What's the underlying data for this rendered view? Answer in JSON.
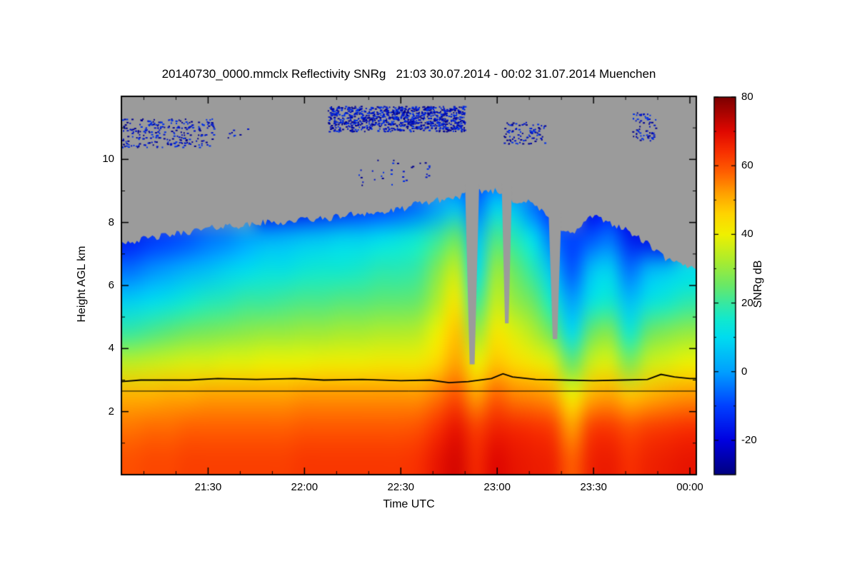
{
  "chart_data": {
    "type": "heatmap",
    "title": "20140730_0000.mmclx Reflectivity SNRg   21:03 30.07.2014 - 00:02 31.07.2014 Muenchen",
    "xlabel": "Time UTC",
    "ylabel": "Height AGL km",
    "station": "Muenchen",
    "x_range_hours": [
      21.05,
      24.0333
    ],
    "x_ticks": [
      {
        "t": 21.5,
        "label": "21:30"
      },
      {
        "t": 22.0,
        "label": "22:00"
      },
      {
        "t": 22.5,
        "label": "22:30"
      },
      {
        "t": 23.0,
        "label": "23:00"
      },
      {
        "t": 23.5,
        "label": "23:30"
      },
      {
        "t": 24.0,
        "label": "00:00"
      }
    ],
    "x_minor_step_min": 10,
    "y_range_km": [
      0,
      12
    ],
    "y_ticks": [
      2,
      4,
      6,
      8,
      10
    ],
    "y_minor_step_km": 1,
    "nodata_color": "#9b9b9b",
    "colorbar": {
      "label": "SNRg dB",
      "range": [
        -30,
        80
      ],
      "ticks": [
        -20,
        0,
        20,
        40,
        60,
        80
      ],
      "minor_ticks": [
        -10,
        10,
        30,
        50,
        70
      ]
    },
    "colormap": [
      [
        -30,
        "#000080"
      ],
      [
        -20,
        "#0000e0"
      ],
      [
        -10,
        "#0040ff"
      ],
      [
        -5,
        "#0070ff"
      ],
      [
        0,
        "#00a0ff"
      ],
      [
        10,
        "#00dcf0"
      ],
      [
        15,
        "#10e8d0"
      ],
      [
        20,
        "#38e8a0"
      ],
      [
        25,
        "#68e868"
      ],
      [
        32,
        "#a8ec30"
      ],
      [
        40,
        "#f0f000"
      ],
      [
        46,
        "#ffd400"
      ],
      [
        52,
        "#ffa000"
      ],
      [
        58,
        "#ff6000"
      ],
      [
        64,
        "#f83000"
      ],
      [
        70,
        "#e00800"
      ],
      [
        80,
        "#7c0000"
      ]
    ],
    "grid": {
      "note": "SNRg dB; rows top to bottom, row centers in row_centers_km; 30 uniform time columns spanning x_range_hours; null = no echo (gray)",
      "row_centers_km": [
        11.5,
        10.5,
        9.5,
        8.5,
        7.5,
        6.5,
        5.5,
        4.5,
        3.5,
        2.5,
        1.5,
        0.5
      ],
      "values": [
        [
          null,
          null,
          null,
          null,
          null,
          null,
          null,
          null,
          null,
          null,
          null,
          null,
          null,
          null,
          null,
          null,
          null,
          null,
          null,
          null,
          null,
          null,
          null,
          null,
          null,
          null,
          null,
          null,
          null,
          null
        ],
        [
          null,
          null,
          null,
          null,
          null,
          null,
          null,
          null,
          null,
          null,
          null,
          null,
          null,
          null,
          null,
          null,
          null,
          null,
          null,
          null,
          null,
          null,
          null,
          null,
          null,
          null,
          null,
          null,
          null,
          null
        ],
        [
          null,
          null,
          null,
          null,
          null,
          null,
          null,
          null,
          null,
          null,
          null,
          null,
          null,
          null,
          null,
          null,
          null,
          -8,
          -10,
          -6,
          -10,
          null,
          null,
          null,
          null,
          null,
          null,
          null,
          null,
          null
        ],
        [
          null,
          null,
          null,
          null,
          null,
          null,
          null,
          -20,
          -19,
          -18,
          -16,
          -14,
          -12,
          -10,
          -8,
          -5,
          0,
          5,
          -5,
          8,
          5,
          -5,
          -12,
          null,
          -18,
          -15,
          -20,
          null,
          null,
          null
        ],
        [
          -15,
          -12,
          -10,
          -8,
          -5,
          -3,
          0,
          2,
          3,
          5,
          6,
          8,
          8,
          10,
          12,
          15,
          20,
          25,
          5,
          22,
          18,
          10,
          -5,
          -10,
          -8,
          -5,
          -15,
          -18,
          -20,
          null
        ],
        [
          -5,
          -2,
          0,
          3,
          5,
          8,
          10,
          12,
          12,
          14,
          15,
          15,
          16,
          18,
          18,
          20,
          28,
          35,
          10,
          30,
          25,
          18,
          5,
          -8,
          5,
          8,
          -5,
          3,
          6,
          10
        ],
        [
          8,
          10,
          12,
          15,
          17,
          18,
          20,
          20,
          21,
          22,
          22,
          23,
          23,
          24,
          24,
          25,
          33,
          42,
          20,
          35,
          30,
          25,
          15,
          0,
          12,
          15,
          5,
          12,
          15,
          18
        ],
        [
          20,
          22,
          24,
          26,
          27,
          28,
          29,
          30,
          30,
          31,
          31,
          32,
          32,
          33,
          33,
          34,
          40,
          48,
          30,
          42,
          38,
          33,
          25,
          10,
          25,
          28,
          15,
          25,
          28,
          30
        ],
        [
          35,
          36,
          37,
          38,
          38,
          39,
          39,
          40,
          40,
          40,
          41,
          41,
          41,
          42,
          42,
          42,
          46,
          52,
          40,
          48,
          45,
          42,
          38,
          25,
          36,
          38,
          28,
          36,
          38,
          40
        ],
        [
          50,
          50,
          51,
          51,
          52,
          52,
          52,
          52,
          52,
          53,
          53,
          53,
          53,
          53,
          53,
          53,
          56,
          60,
          52,
          58,
          55,
          54,
          52,
          40,
          50,
          52,
          48,
          50,
          52,
          53
        ],
        [
          56,
          57,
          57,
          58,
          58,
          58,
          58,
          58,
          58,
          59,
          59,
          59,
          59,
          59,
          59,
          60,
          64,
          68,
          62,
          66,
          65,
          64,
          62,
          52,
          62,
          63,
          60,
          62,
          63,
          64
        ],
        [
          60,
          61,
          61,
          62,
          62,
          62,
          62,
          62,
          62,
          63,
          63,
          63,
          63,
          63,
          63,
          64,
          68,
          71,
          65,
          70,
          68,
          67,
          66,
          58,
          66,
          67,
          64,
          66,
          67,
          68
        ]
      ]
    },
    "cloud_top_km": [
      7.4,
      7.5,
      7.6,
      7.7,
      7.8,
      7.9,
      7.9,
      8.0,
      8.0,
      8.1,
      8.1,
      8.2,
      8.3,
      8.3,
      8.4,
      8.6,
      8.7,
      8.8,
      9.0,
      9.0,
      8.7,
      8.6,
      8.0,
      7.6,
      8.2,
      8.0,
      7.7,
      7.3,
      6.8,
      6.6
    ],
    "gaps": [
      {
        "t": 22.87,
        "half_width_min": 2.2,
        "top_km": 9.2,
        "bottom_km": 3.5
      },
      {
        "t": 23.05,
        "half_width_min": 1.6,
        "top_km": 9.2,
        "bottom_km": 4.8
      },
      {
        "t": 23.3,
        "half_width_min": 2.0,
        "top_km": 8.4,
        "bottom_km": 4.3
      }
    ],
    "speckle_patches": [
      {
        "t1": 21.05,
        "t2": 21.53,
        "h1": 10.4,
        "h2": 11.3,
        "density": "medium"
      },
      {
        "t1": 21.55,
        "t2": 21.75,
        "h1": 10.6,
        "h2": 11.0,
        "density": "sparse"
      },
      {
        "t1": 22.12,
        "t2": 22.83,
        "h1": 10.9,
        "h2": 11.7,
        "density": "dense"
      },
      {
        "t1": 22.25,
        "t2": 22.65,
        "h1": 9.2,
        "h2": 10.0,
        "density": "sparse"
      },
      {
        "t1": 23.03,
        "t2": 23.25,
        "h1": 10.5,
        "h2": 11.2,
        "density": "medium"
      },
      {
        "t1": 23.7,
        "t2": 23.82,
        "h1": 10.6,
        "h2": 11.5,
        "density": "medium"
      }
    ],
    "melting_layer_line_km": [
      [
        21.05,
        2.95
      ],
      [
        21.15,
        3.0
      ],
      [
        21.4,
        3.0
      ],
      [
        21.55,
        3.05
      ],
      [
        21.75,
        3.02
      ],
      [
        21.95,
        3.05
      ],
      [
        22.1,
        3.0
      ],
      [
        22.3,
        3.02
      ],
      [
        22.5,
        2.98
      ],
      [
        22.65,
        3.0
      ],
      [
        22.75,
        2.92
      ],
      [
        22.85,
        2.95
      ],
      [
        22.97,
        3.05
      ],
      [
        23.03,
        3.2
      ],
      [
        23.08,
        3.1
      ],
      [
        23.2,
        3.02
      ],
      [
        23.35,
        3.0
      ],
      [
        23.5,
        2.98
      ],
      [
        23.65,
        3.0
      ],
      [
        23.78,
        3.02
      ],
      [
        23.85,
        3.18
      ],
      [
        23.92,
        3.1
      ],
      [
        24.0,
        3.05
      ],
      [
        24.033,
        3.05
      ]
    ],
    "flat_line_km": 2.65
  }
}
